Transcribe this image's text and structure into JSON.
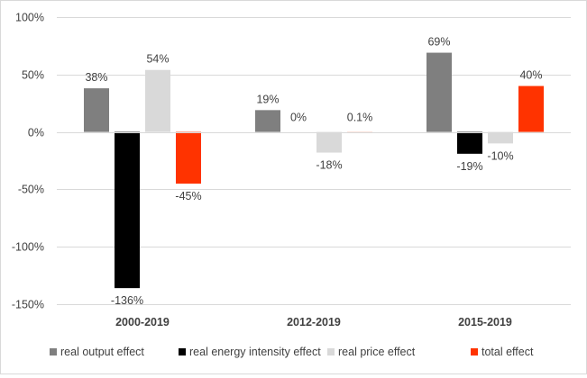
{
  "chart_data": {
    "type": "bar",
    "title": "",
    "xlabel": "",
    "ylabel": "",
    "categories": [
      "2000-2019",
      "2012-2019",
      "2015-2019"
    ],
    "ylim": [
      -150,
      100
    ],
    "yticks": [
      100,
      50,
      0,
      -50,
      -100,
      -150
    ],
    "ytick_labels": [
      "100%",
      "50%",
      "0%",
      "-50%",
      "-100%",
      "-150%"
    ],
    "grid": true,
    "legend_position": "bottom",
    "series": [
      {
        "name": "real output effect",
        "color": "#7f7f7f",
        "values": [
          38,
          19,
          69
        ],
        "labels": [
          "38%",
          "19%",
          "69%"
        ]
      },
      {
        "name": "real energy intensity effect",
        "color": "#000000",
        "values": [
          -136,
          0,
          -19
        ],
        "labels": [
          "-136%",
          "0%",
          "-19%"
        ]
      },
      {
        "name": "real price effect",
        "color": "#d9d9d9",
        "values": [
          54,
          -18,
          -10
        ],
        "labels": [
          "54%",
          "-18%",
          "-10%"
        ]
      },
      {
        "name": "total effect",
        "color": "#ff3300",
        "values": [
          -45,
          0.1,
          40
        ],
        "labels": [
          "-45%",
          "0.1%",
          "40%"
        ]
      }
    ]
  }
}
